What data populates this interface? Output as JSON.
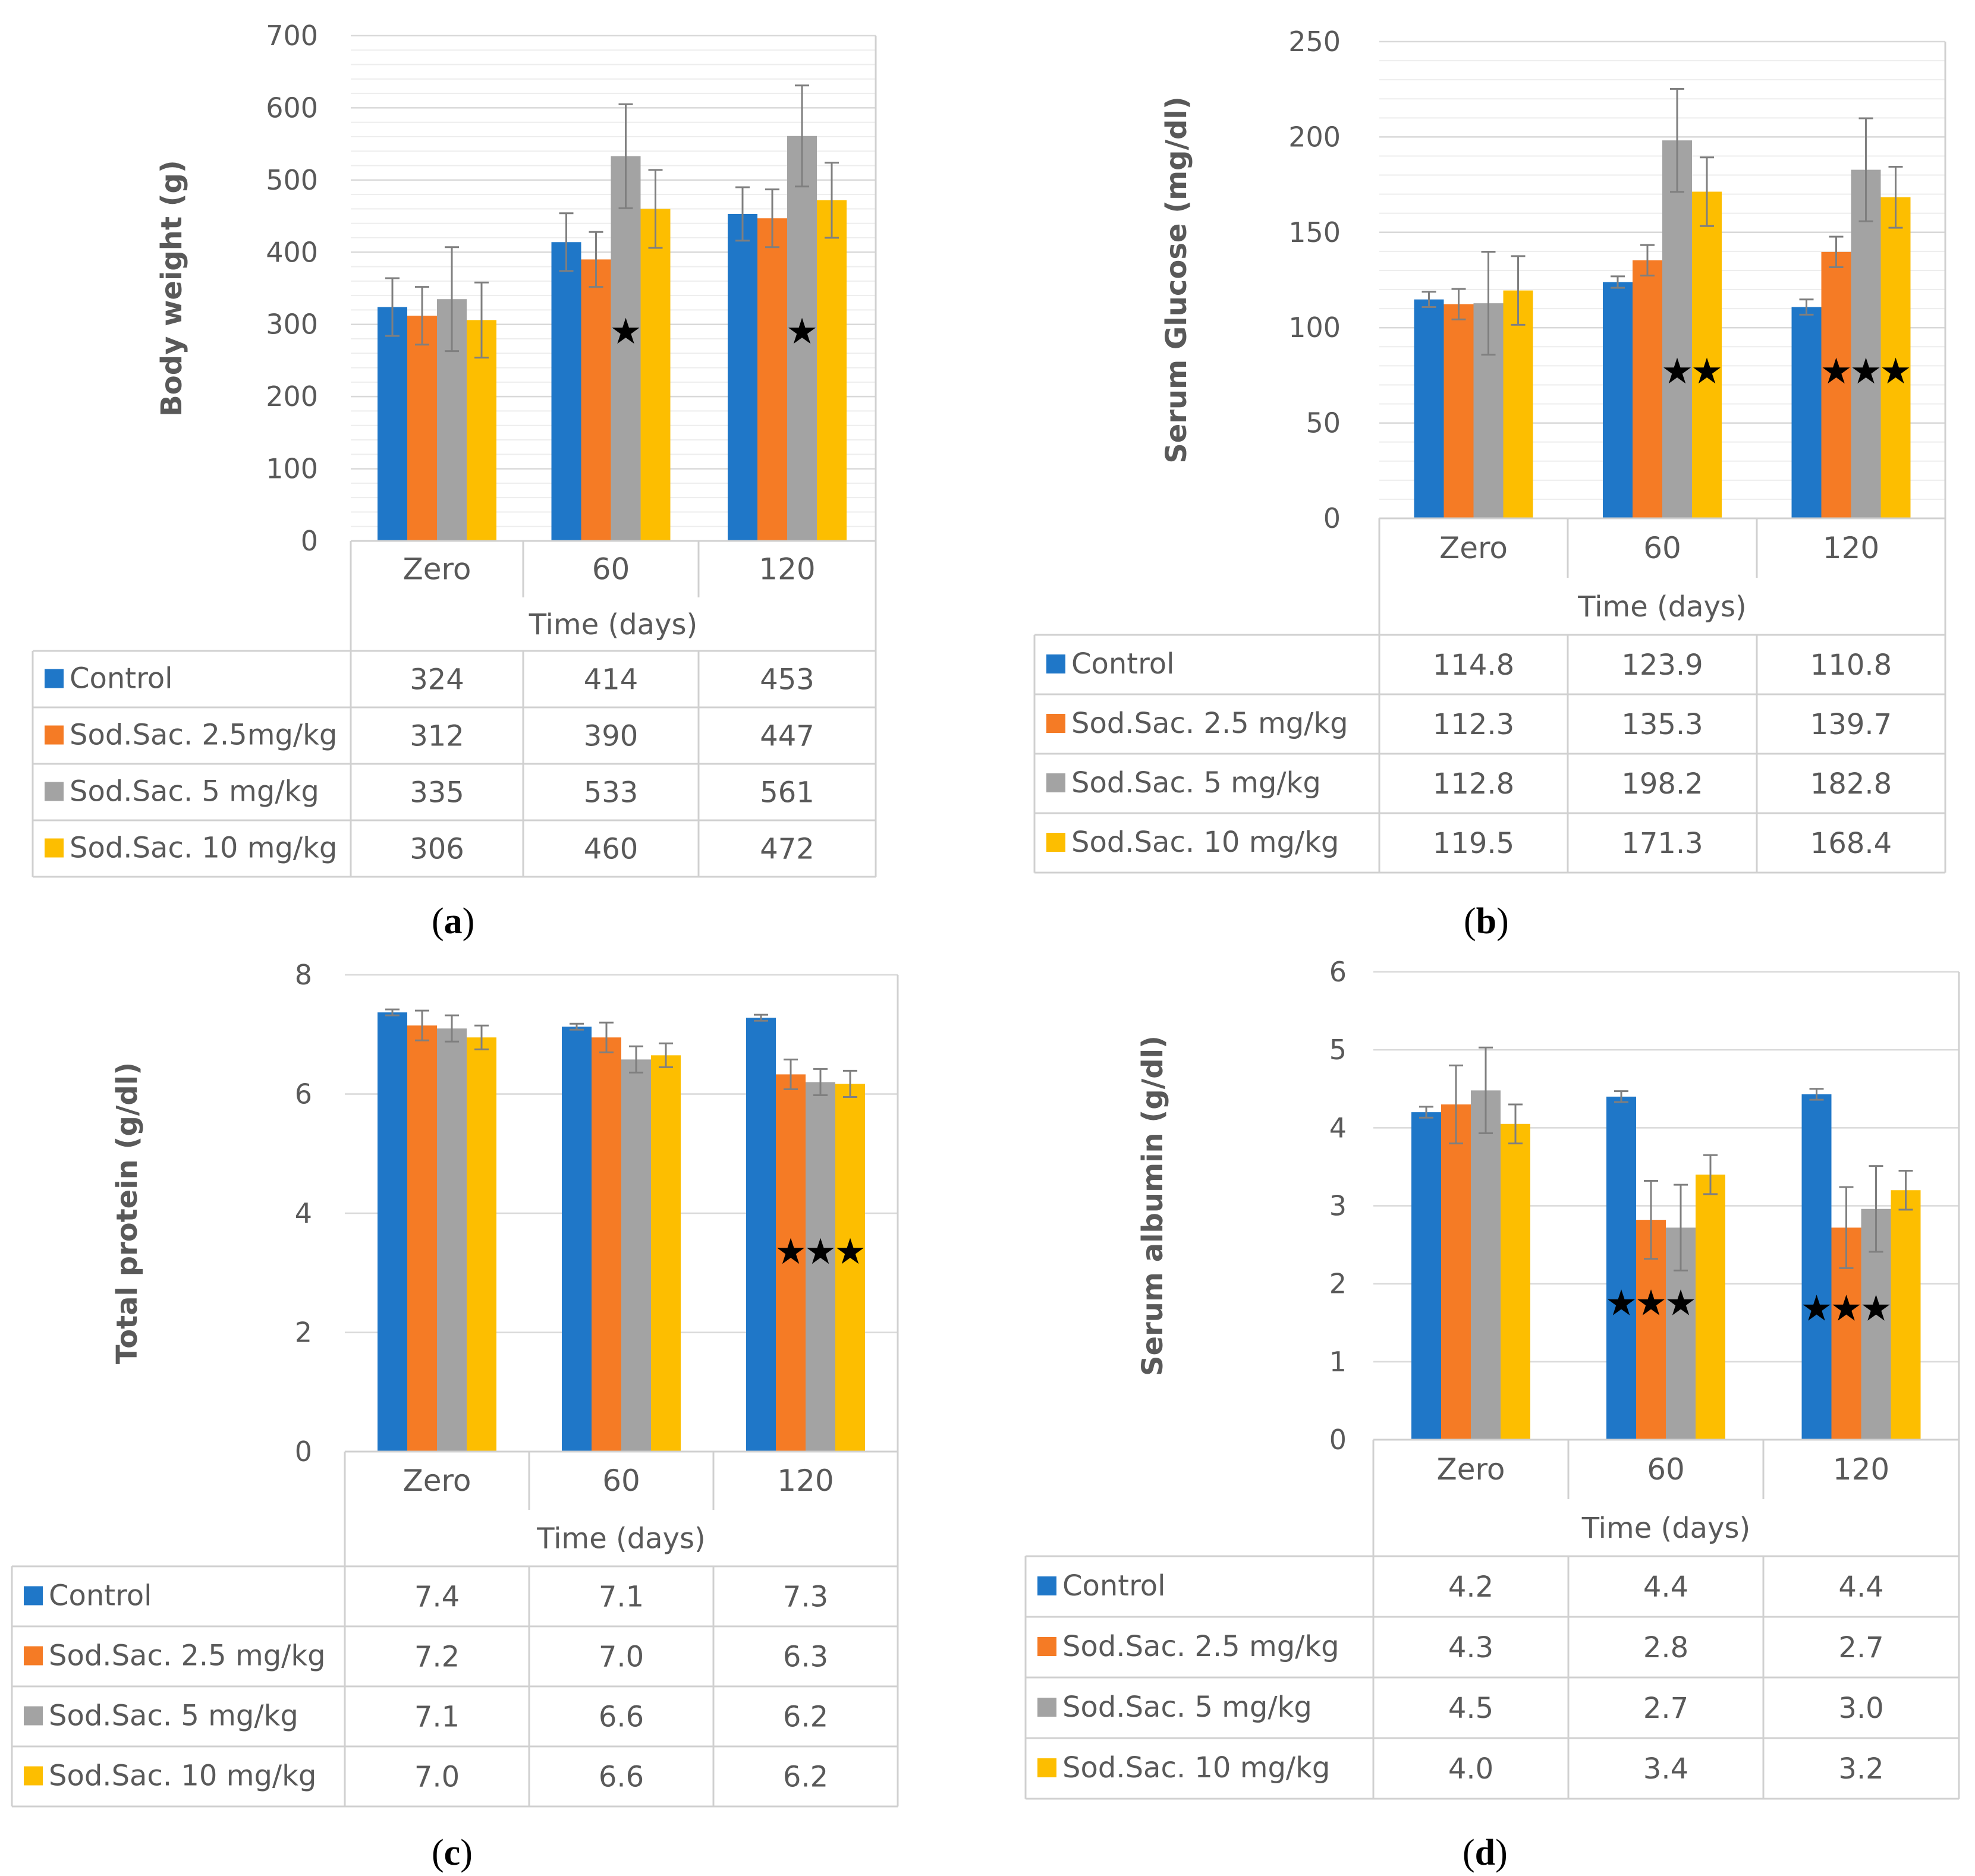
{
  "chart_data": [
    {
      "type": "bar",
      "ylabel": "Body weight (g)",
      "xlabel": "Time (days)",
      "categories": [
        "Zero",
        "60",
        "120"
      ],
      "ylim": [
        0,
        700
      ],
      "ytick_step": 100,
      "minor_step": 20,
      "yticks": [
        "0",
        "100",
        "200",
        "300",
        "400",
        "500",
        "600",
        "700"
      ],
      "series": [
        {
          "name": "Control",
          "color": "#1F77C8",
          "values": [
            324,
            414,
            453
          ],
          "err": [
            40,
            40,
            37
          ],
          "labels": [
            "324",
            "414",
            "453"
          ]
        },
        {
          "name": "Sod.Sac. 2.5mg/kg",
          "color": "#F57B25",
          "values": [
            312,
            390,
            447
          ],
          "err": [
            40,
            38,
            40
          ],
          "labels": [
            "312",
            "390",
            "447"
          ]
        },
        {
          "name": "Sod.Sac. 5 mg/kg",
          "color": "#A3A3A3",
          "values": [
            335,
            533,
            561
          ],
          "err": [
            72,
            72,
            70
          ],
          "labels": [
            "335",
            "533",
            "561"
          ]
        },
        {
          "name": "Sod.Sac. 10 mg/kg",
          "color": "#FDBE00",
          "values": [
            306,
            460,
            472
          ],
          "err": [
            52,
            54,
            52
          ],
          "labels": [
            "306",
            "460",
            "472"
          ]
        }
      ],
      "stars": [
        {
          "category": 1,
          "series": [
            2
          ],
          "y": 290
        },
        {
          "category": 2,
          "series": [
            2
          ],
          "y": 290
        }
      ],
      "panel_label": {
        "open": "(",
        "letter": "a",
        "close": ")"
      }
    },
    {
      "type": "bar",
      "ylabel": "Serum Glucose (mg/dl)",
      "xlabel": "Time (days)",
      "categories": [
        "Zero",
        "60",
        "120"
      ],
      "ylim": [
        0,
        250
      ],
      "ytick_step": 50,
      "minor_step": 10,
      "yticks": [
        "0",
        "50",
        "100",
        "150",
        "200",
        "250"
      ],
      "series": [
        {
          "name": "Control",
          "color": "#1F77C8",
          "values": [
            114.8,
            123.9,
            110.8
          ],
          "err": [
            4,
            3,
            4
          ],
          "labels": [
            "114.8",
            "123.9",
            "110.8"
          ]
        },
        {
          "name": "Sod.Sac. 2.5 mg/kg",
          "color": "#F57B25",
          "values": [
            112.3,
            135.3,
            139.7
          ],
          "err": [
            8,
            8,
            8
          ],
          "labels": [
            "112.3",
            "135.3",
            "139.7"
          ]
        },
        {
          "name": "Sod.Sac. 5 mg/kg",
          "color": "#A3A3A3",
          "values": [
            112.8,
            198.2,
            182.8
          ],
          "err": [
            27,
            27,
            27
          ],
          "labels": [
            "112.8",
            "198.2",
            "182.8"
          ]
        },
        {
          "name": "Sod.Sac. 10 mg/kg",
          "color": "#FDBE00",
          "values": [
            119.5,
            171.3,
            168.4
          ],
          "err": [
            18,
            18,
            16
          ],
          "labels": [
            "119.5",
            "171.3",
            "168.4"
          ]
        }
      ],
      "stars": [
        {
          "category": 1,
          "series": [
            2,
            3
          ],
          "y": 77
        },
        {
          "category": 2,
          "series": [
            1,
            2,
            3
          ],
          "y": 77
        }
      ],
      "panel_label": {
        "open": "(",
        "letter": "b",
        "close": ")"
      }
    },
    {
      "type": "bar",
      "ylabel": "Total protein (g/dl)",
      "xlabel": "Time (days)",
      "categories": [
        "Zero",
        "60",
        "120"
      ],
      "ylim": [
        0,
        8
      ],
      "ytick_step": 2,
      "minor_step": null,
      "yticks": [
        "0",
        "2",
        "4",
        "6",
        "8"
      ],
      "series": [
        {
          "name": "Control",
          "color": "#1F77C8",
          "values": [
            7.37,
            7.13,
            7.28
          ],
          "err": [
            0.05,
            0.05,
            0.05
          ],
          "labels": [
            "7.4",
            "7.1",
            "7.3"
          ]
        },
        {
          "name": "Sod.Sac. 2.5 mg/kg",
          "color": "#F57B25",
          "values": [
            7.15,
            6.95,
            6.33
          ],
          "err": [
            0.25,
            0.25,
            0.25
          ],
          "labels": [
            "7.2",
            "7.0",
            "6.3"
          ]
        },
        {
          "name": "Sod.Sac. 5 mg/kg",
          "color": "#A3A3A3",
          "values": [
            7.1,
            6.58,
            6.2
          ],
          "err": [
            0.22,
            0.22,
            0.22
          ],
          "labels": [
            "7.1",
            "6.6",
            "6.2"
          ]
        },
        {
          "name": "Sod.Sac. 10 mg/kg",
          "color": "#FDBE00",
          "values": [
            6.95,
            6.65,
            6.17
          ],
          "err": [
            0.2,
            0.2,
            0.22
          ],
          "labels": [
            "7.0",
            "6.6",
            "6.2"
          ]
        }
      ],
      "stars": [
        {
          "category": 2,
          "series": [
            1,
            2,
            3
          ],
          "y": 3.35
        }
      ],
      "panel_label": {
        "open": "(",
        "letter": "c",
        "close": ")"
      }
    },
    {
      "type": "bar",
      "ylabel": "Serum albumin (g/dl)",
      "xlabel": "Time (days)",
      "categories": [
        "Zero",
        "60",
        "120"
      ],
      "ylim": [
        0,
        6
      ],
      "ytick_step": 1,
      "minor_step": null,
      "yticks": [
        "0",
        "1",
        "2",
        "3",
        "4",
        "5",
        "6"
      ],
      "series": [
        {
          "name": "Control",
          "color": "#1F77C8",
          "values": [
            4.2,
            4.4,
            4.43
          ],
          "err": [
            0.07,
            0.07,
            0.07
          ],
          "labels": [
            "4.2",
            "4.4",
            "4.4"
          ]
        },
        {
          "name": "Sod.Sac. 2.5 mg/kg",
          "color": "#F57B25",
          "values": [
            4.3,
            2.82,
            2.72
          ],
          "err": [
            0.5,
            0.5,
            0.52
          ],
          "labels": [
            "4.3",
            "2.8",
            "2.7"
          ]
        },
        {
          "name": "Sod.Sac. 5 mg/kg",
          "color": "#A3A3A3",
          "values": [
            4.48,
            2.72,
            2.96
          ],
          "err": [
            0.55,
            0.55,
            0.55
          ],
          "labels": [
            "4.5",
            "2.7",
            "3.0"
          ]
        },
        {
          "name": "Sod.Sac. 10 mg/kg",
          "color": "#FDBE00",
          "values": [
            4.05,
            3.4,
            3.2
          ],
          "err": [
            0.25,
            0.25,
            0.25
          ],
          "labels": [
            "4.0",
            "3.4",
            "3.2"
          ]
        }
      ],
      "stars": [
        {
          "category": 1,
          "series": [
            0,
            1,
            2
          ],
          "y": 1.75
        },
        {
          "category": 2,
          "series": [
            0,
            1,
            2
          ],
          "y": 1.68
        }
      ],
      "panel_label": {
        "open": "(",
        "letter": "d",
        "close": ")"
      }
    }
  ]
}
